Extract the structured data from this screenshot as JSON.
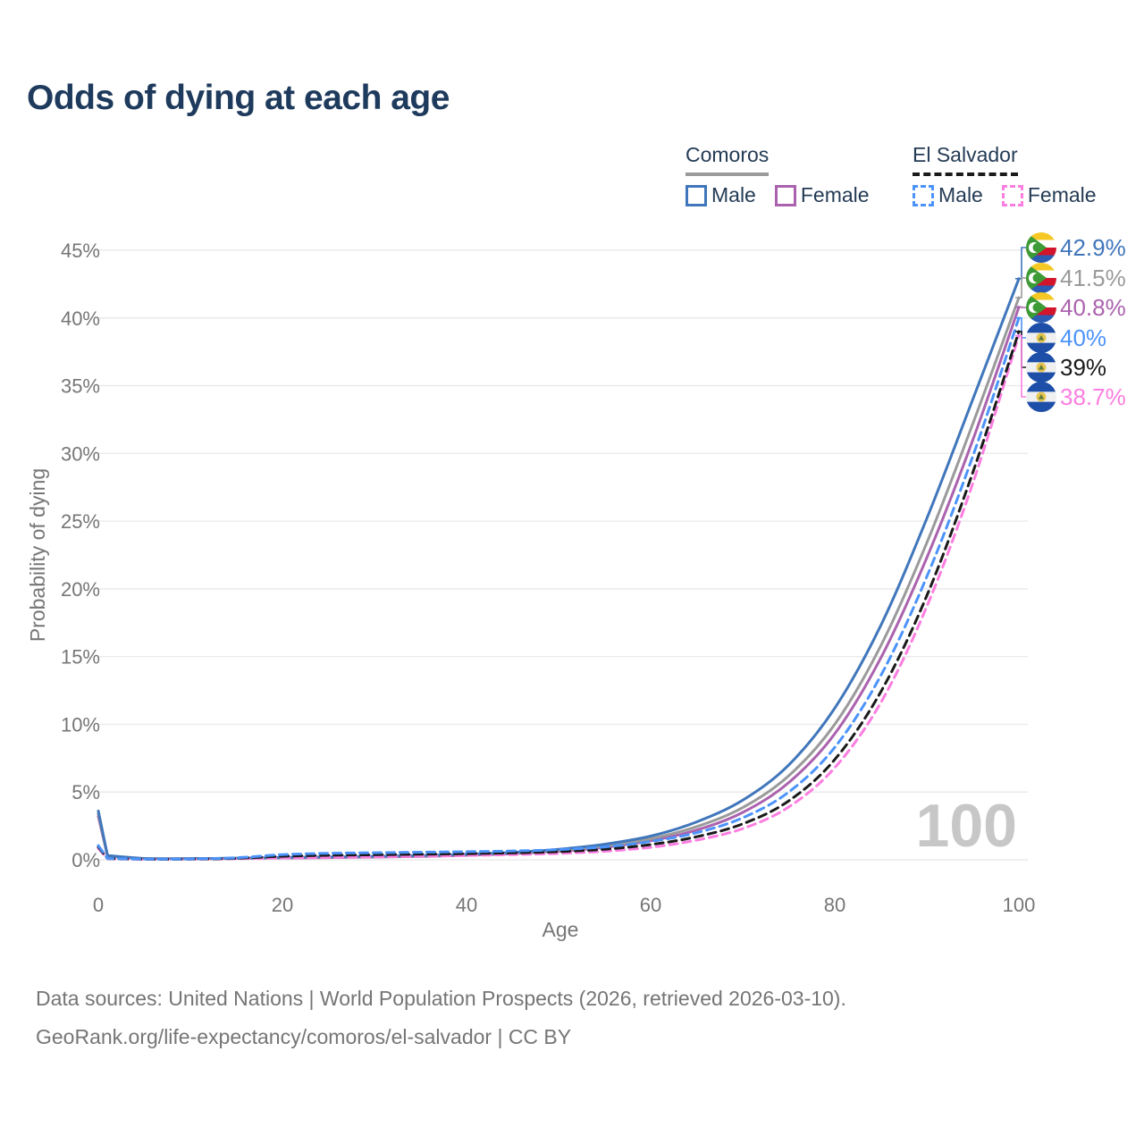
{
  "title": "Odds of dying at each age",
  "watermark": "100",
  "legend": {
    "comoros": {
      "label": "Comoros",
      "male_label": "Male",
      "female_label": "Female"
    },
    "el_salvador": {
      "label": "El Salvador",
      "male_label": "Male",
      "female_label": "Female"
    }
  },
  "axes": {
    "x": {
      "label": "Age",
      "ticks": [
        0,
        20,
        40,
        60,
        80,
        100
      ],
      "min": 0,
      "max": 100
    },
    "y": {
      "label": "Probability of dying",
      "ticks": [
        "0%",
        "5%",
        "10%",
        "15%",
        "20%",
        "25%",
        "30%",
        "35%",
        "40%",
        "45%"
      ],
      "min": 0,
      "max": 45,
      "unit": "%"
    }
  },
  "colors": {
    "comoros_male": "#4076bb",
    "comoros_both": "#9a9a9a",
    "comoros_female": "#ab62ae",
    "el_salvador_male": "#4b93fa",
    "el_salvador_both": "#1a1a1a",
    "el_salvador_female": "#fb7ee0",
    "grid": "#eaeaea",
    "tick_text": "#767676",
    "title_text": "#1e3a5c",
    "watermark": "#c7c7c7"
  },
  "chart_data": {
    "type": "line",
    "x_label": "Age",
    "y_label": "Probability of dying",
    "y_unit": "percent",
    "x_ages": [
      0,
      1,
      5,
      10,
      15,
      20,
      25,
      30,
      35,
      40,
      45,
      50,
      55,
      60,
      65,
      70,
      75,
      80,
      85,
      90,
      95,
      100
    ],
    "series": [
      {
        "name": "Comoros — Male",
        "country": "Comoros",
        "sex": "Male",
        "style": "solid",
        "color": "#4076bb",
        "flag": "comoros",
        "end_label": "42.9%",
        "values": [
          3.6,
          0.32,
          0.1,
          0.09,
          0.12,
          0.17,
          0.21,
          0.26,
          0.32,
          0.41,
          0.55,
          0.78,
          1.15,
          1.75,
          2.8,
          4.4,
          7.0,
          11.2,
          17.3,
          25.2,
          34.0,
          42.9
        ]
      },
      {
        "name": "Comoros — Both sexes",
        "country": "Comoros",
        "sex": "Both",
        "style": "solid",
        "color": "#9a9a9a",
        "flag": "comoros",
        "end_label": "41.5%",
        "values": [
          3.4,
          0.3,
          0.09,
          0.08,
          0.11,
          0.15,
          0.19,
          0.23,
          0.29,
          0.37,
          0.5,
          0.7,
          1.02,
          1.55,
          2.45,
          3.85,
          6.2,
          10.0,
          15.8,
          23.4,
          32.2,
          41.5
        ]
      },
      {
        "name": "Comoros — Female",
        "country": "Comoros",
        "sex": "Female",
        "style": "solid",
        "color": "#ab62ae",
        "flag": "comoros",
        "end_label": "40.8%",
        "values": [
          3.2,
          0.28,
          0.085,
          0.075,
          0.1,
          0.13,
          0.16,
          0.2,
          0.25,
          0.33,
          0.45,
          0.63,
          0.92,
          1.4,
          2.2,
          3.5,
          5.7,
          9.3,
          14.9,
          22.3,
          31.0,
          40.8
        ]
      },
      {
        "name": "El Salvador — Male",
        "country": "El Salvador",
        "sex": "Male",
        "style": "dashed",
        "color": "#4b93fa",
        "flag": "el-salvador",
        "end_label": "40%",
        "values": [
          1.05,
          0.1,
          0.05,
          0.06,
          0.15,
          0.38,
          0.48,
          0.52,
          0.56,
          0.6,
          0.65,
          0.75,
          0.95,
          1.35,
          2.0,
          3.1,
          5.0,
          8.3,
          13.6,
          20.9,
          29.8,
          40.0
        ]
      },
      {
        "name": "El Salvador — Both sexes",
        "country": "El Salvador",
        "sex": "Both",
        "style": "dashed",
        "color": "#1a1a1a",
        "flag": "el-salvador",
        "end_label": "39%",
        "values": [
          0.95,
          0.09,
          0.045,
          0.05,
          0.11,
          0.26,
          0.33,
          0.37,
          0.41,
          0.45,
          0.51,
          0.6,
          0.78,
          1.12,
          1.7,
          2.65,
          4.35,
          7.4,
          12.4,
          19.5,
          28.6,
          39.0
        ]
      },
      {
        "name": "El Salvador — Female",
        "country": "El Salvador",
        "sex": "Female",
        "style": "dashed",
        "color": "#fb7ee0",
        "flag": "el-salvador",
        "end_label": "38.7%",
        "values": [
          0.85,
          0.08,
          0.04,
          0.045,
          0.08,
          0.14,
          0.18,
          0.22,
          0.27,
          0.32,
          0.38,
          0.47,
          0.63,
          0.92,
          1.45,
          2.3,
          3.9,
          6.8,
          11.6,
          18.7,
          27.8,
          38.7
        ]
      }
    ],
    "legend_position": "top-right",
    "grid": "horizontal-only"
  },
  "footer": {
    "line1": "Data sources: United Nations | World Population Prospects (2026, retrieved 2026-03-10).",
    "line2": "GeoRank.org/life-expectancy/comoros/el-salvador | CC BY"
  }
}
